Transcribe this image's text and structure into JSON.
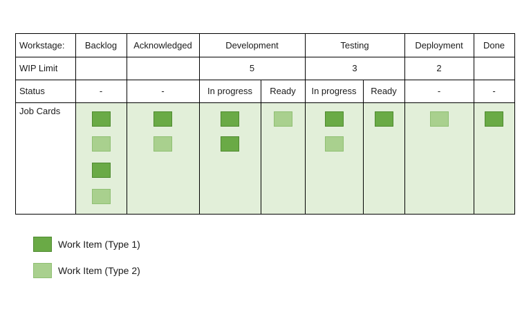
{
  "board": {
    "row_labels": {
      "workstage": "Workstage:",
      "wip": "WIP Limit",
      "status": "Status",
      "jobs": "Job Cards"
    },
    "stages": [
      {
        "label": "Backlog",
        "wip": "",
        "statuses": [
          "-"
        ]
      },
      {
        "label": "Acknowledged",
        "wip": "",
        "statuses": [
          "-"
        ]
      },
      {
        "label": "Development",
        "wip": "5",
        "statuses": [
          "In progress",
          "Ready"
        ]
      },
      {
        "label": "Testing",
        "wip": "3",
        "statuses": [
          "In progress",
          "Ready"
        ]
      },
      {
        "label": "Deployment",
        "wip": "2",
        "statuses": [
          "-"
        ]
      },
      {
        "label": "Done",
        "wip": "",
        "statuses": [
          "-"
        ]
      }
    ],
    "cards": [
      [
        "type1",
        "type2",
        "type1",
        "type2"
      ],
      [
        "type1",
        "type2"
      ],
      [
        "type1",
        "type1"
      ],
      [
        "type2"
      ],
      [
        "type1",
        "type2"
      ],
      [
        "type1"
      ],
      [
        "type2"
      ],
      [
        "type1"
      ]
    ],
    "colors": {
      "type1": "#6aaa46",
      "type2": "#a9d08e",
      "jobs_background": "#e2efd9"
    }
  },
  "legend": {
    "items": [
      {
        "type": "type1",
        "label": "Work Item (Type 1)"
      },
      {
        "type": "type2",
        "label": "Work Item (Type 2)"
      }
    ]
  }
}
